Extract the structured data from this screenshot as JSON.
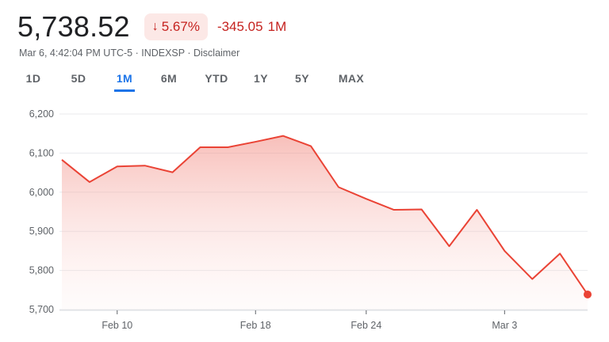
{
  "quote": {
    "price": "5,738.52",
    "change_pct": "5.67%",
    "change_abs": "-345.05",
    "change_period": "1M",
    "arrow_icon": "arrow-down-icon"
  },
  "meta": {
    "timestamp": "Mar 6, 4:42:04 PM UTC-5",
    "separator": " · ",
    "exchange": "INDEXSP",
    "disclaimer": "Disclaimer"
  },
  "tabs": [
    {
      "label": "1D",
      "active": false
    },
    {
      "label": "5D",
      "active": false
    },
    {
      "label": "1M",
      "active": true
    },
    {
      "label": "6M",
      "active": false
    },
    {
      "label": "YTD",
      "active": false
    },
    {
      "label": "1Y",
      "active": false
    },
    {
      "label": "5Y",
      "active": false
    },
    {
      "label": "MAX",
      "active": false
    }
  ],
  "colors": {
    "line": "#ea4335",
    "down": "#c5221f",
    "grid": "#e8eaed",
    "accent": "#1a73e8"
  },
  "chart_data": {
    "type": "area",
    "title": "",
    "xlabel": "",
    "ylabel": "",
    "x": [
      "Feb 6",
      "Feb 7",
      "Feb 10",
      "Feb 11",
      "Feb 12",
      "Feb 13",
      "Feb 14",
      "Feb 18",
      "Feb 19",
      "Feb 20",
      "Feb 21",
      "Feb 24",
      "Feb 25",
      "Feb 26",
      "Feb 27",
      "Feb 28",
      "Mar 3",
      "Mar 4",
      "Mar 5",
      "Mar 6"
    ],
    "series": [
      {
        "values": [
          6083,
          6026,
          6066,
          6068,
          6051,
          6115,
          6115,
          6129,
          6144,
          6118,
          6013,
          5983,
          5955,
          5956,
          5862,
          5955,
          5850,
          5778,
          5843,
          5738.52
        ]
      }
    ],
    "ylim": [
      5700,
      6200
    ],
    "yticks": [
      "5,700",
      "5,800",
      "5,900",
      "6,000",
      "6,100",
      "6,200"
    ],
    "yticks_values": [
      5700,
      5800,
      5900,
      6000,
      6100,
      6200
    ],
    "xticks": [
      {
        "label": "Feb 10",
        "x": "Feb 10"
      },
      {
        "label": "Feb 18",
        "x": "Feb 18"
      },
      {
        "label": "Feb 24",
        "x": "Feb 24"
      },
      {
        "label": "Mar 3",
        "x": "Mar 3"
      }
    ],
    "grid": true
  }
}
